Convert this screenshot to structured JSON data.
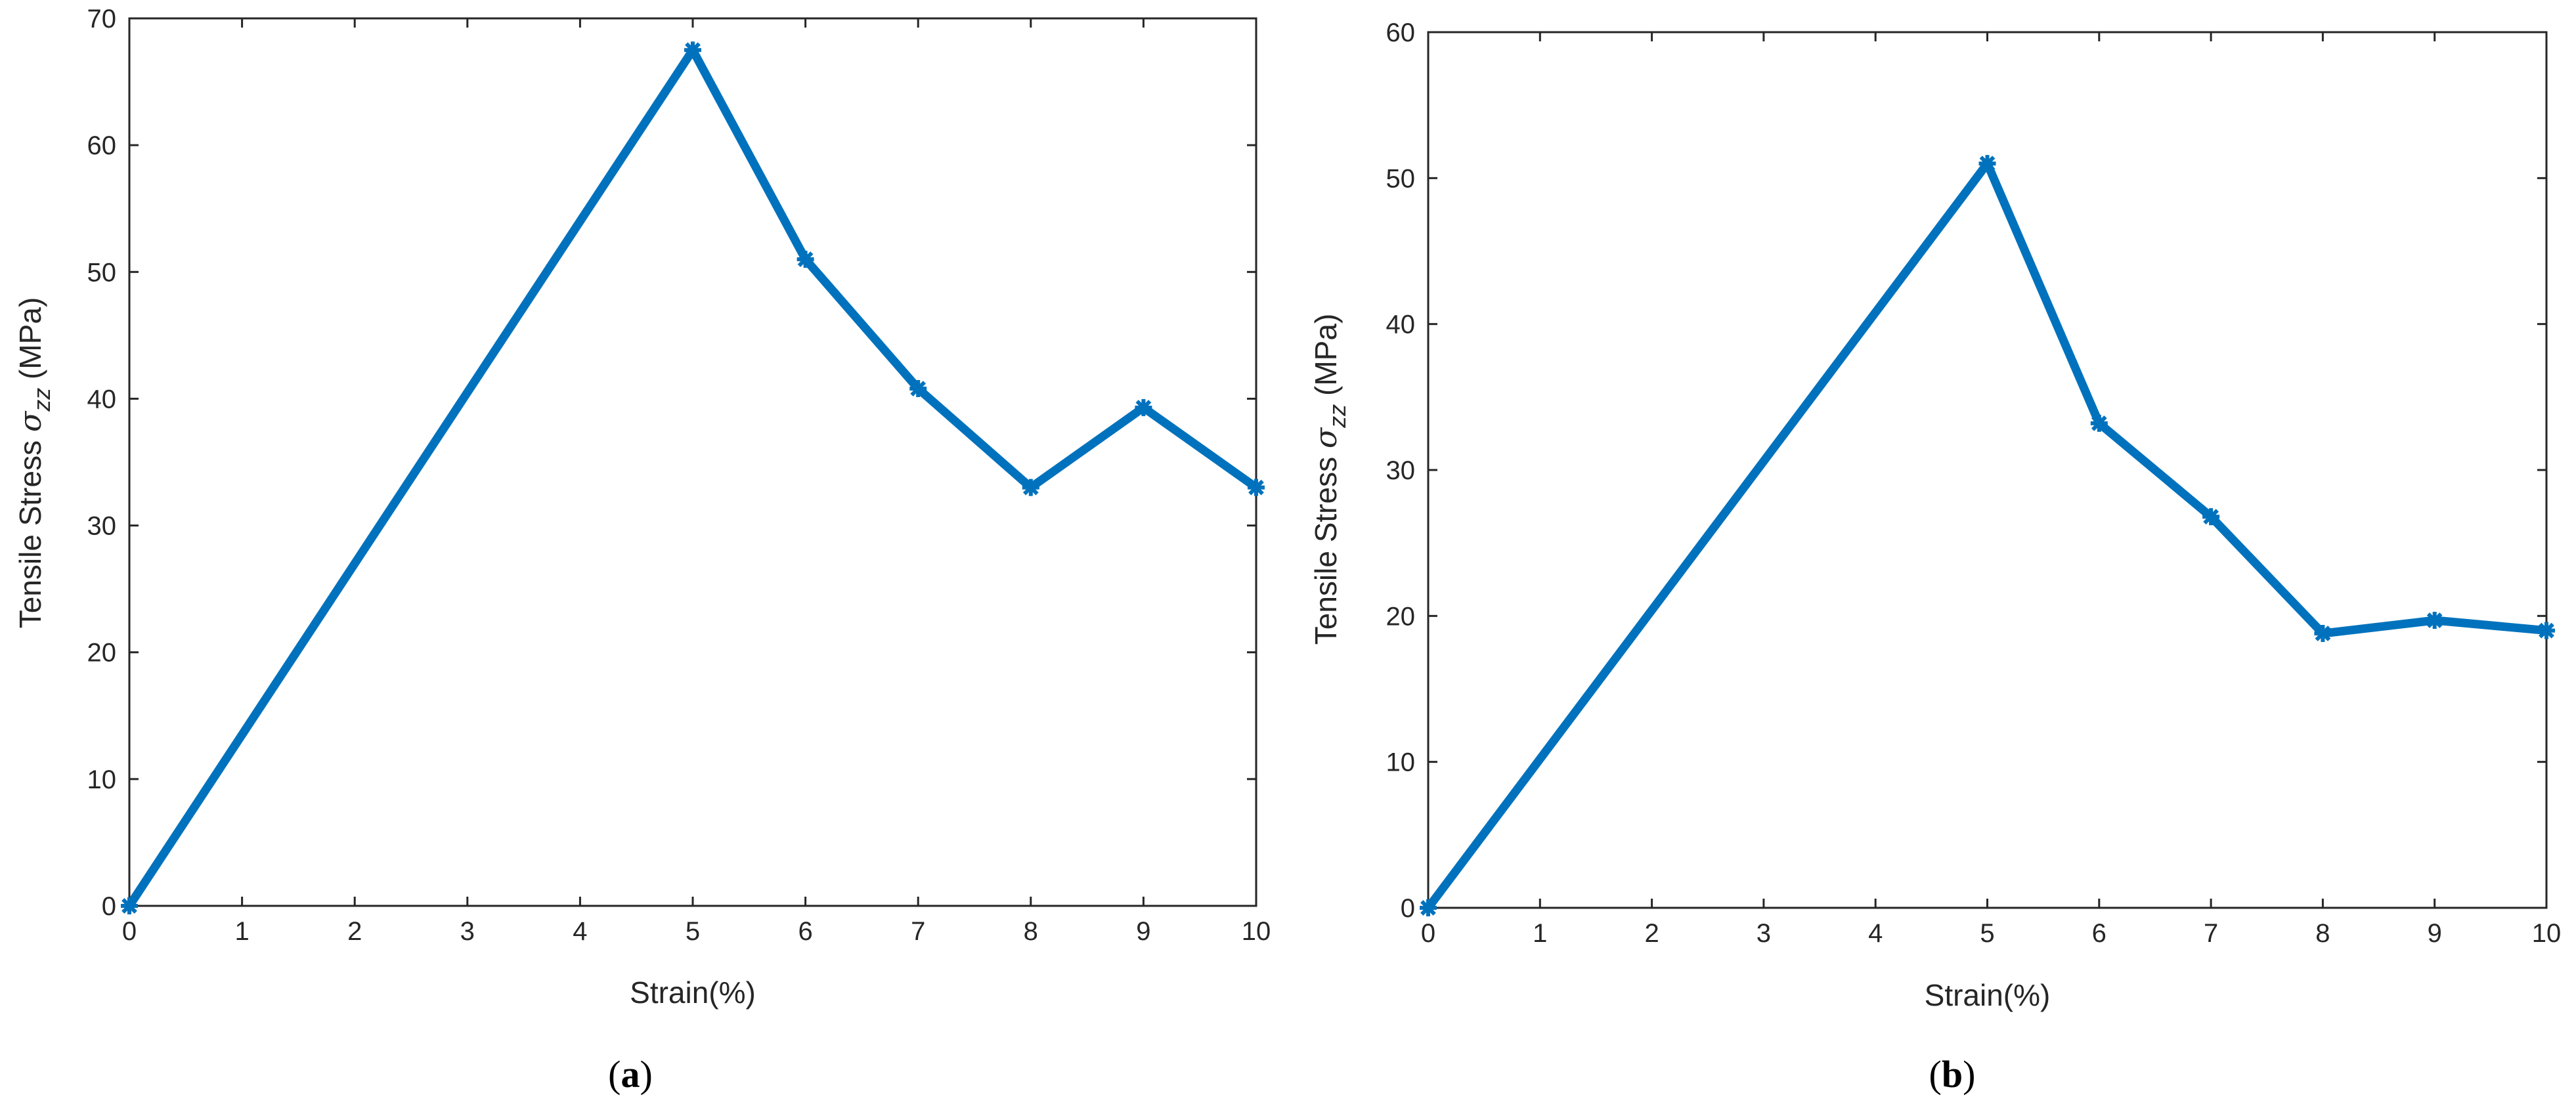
{
  "chart_data": [
    {
      "type": "line",
      "panel_label": "a",
      "xlabel": "Strain(%)",
      "ylabel": {
        "prefix": "Tensile Stress ",
        "symbol": "σ",
        "subscript": "zz",
        "suffix": " (MPa)"
      },
      "xlim": [
        0,
        10
      ],
      "ylim": [
        0,
        70
      ],
      "xticks": [
        0,
        1,
        2,
        3,
        4,
        5,
        6,
        7,
        8,
        9,
        10
      ],
      "yticks": [
        0,
        10,
        20,
        30,
        40,
        50,
        60,
        70
      ],
      "grid": false,
      "series": [
        {
          "x": [
            0,
            5,
            6,
            7,
            8,
            9,
            10
          ],
          "y": [
            0,
            67.5,
            51,
            40.8,
            33,
            39.3,
            33
          ]
        }
      ],
      "colors": {
        "line": "#0072BD",
        "axis": "#262626"
      }
    },
    {
      "type": "line",
      "panel_label": "b",
      "xlabel": "Strain(%)",
      "ylabel": {
        "prefix": "Tensile Stress ",
        "symbol": "σ",
        "subscript": "zz",
        "suffix": " (MPa)"
      },
      "xlim": [
        0,
        10
      ],
      "ylim": [
        0,
        60
      ],
      "xticks": [
        0,
        1,
        2,
        3,
        4,
        5,
        6,
        7,
        8,
        9,
        10
      ],
      "yticks": [
        0,
        10,
        20,
        30,
        40,
        50,
        60
      ],
      "grid": false,
      "series": [
        {
          "x": [
            0,
            5,
            6,
            7,
            8,
            9,
            10
          ],
          "y": [
            0,
            51,
            33.2,
            26.8,
            18.8,
            19.7,
            19
          ]
        }
      ],
      "colors": {
        "line": "#0072BD",
        "axis": "#262626"
      }
    }
  ]
}
